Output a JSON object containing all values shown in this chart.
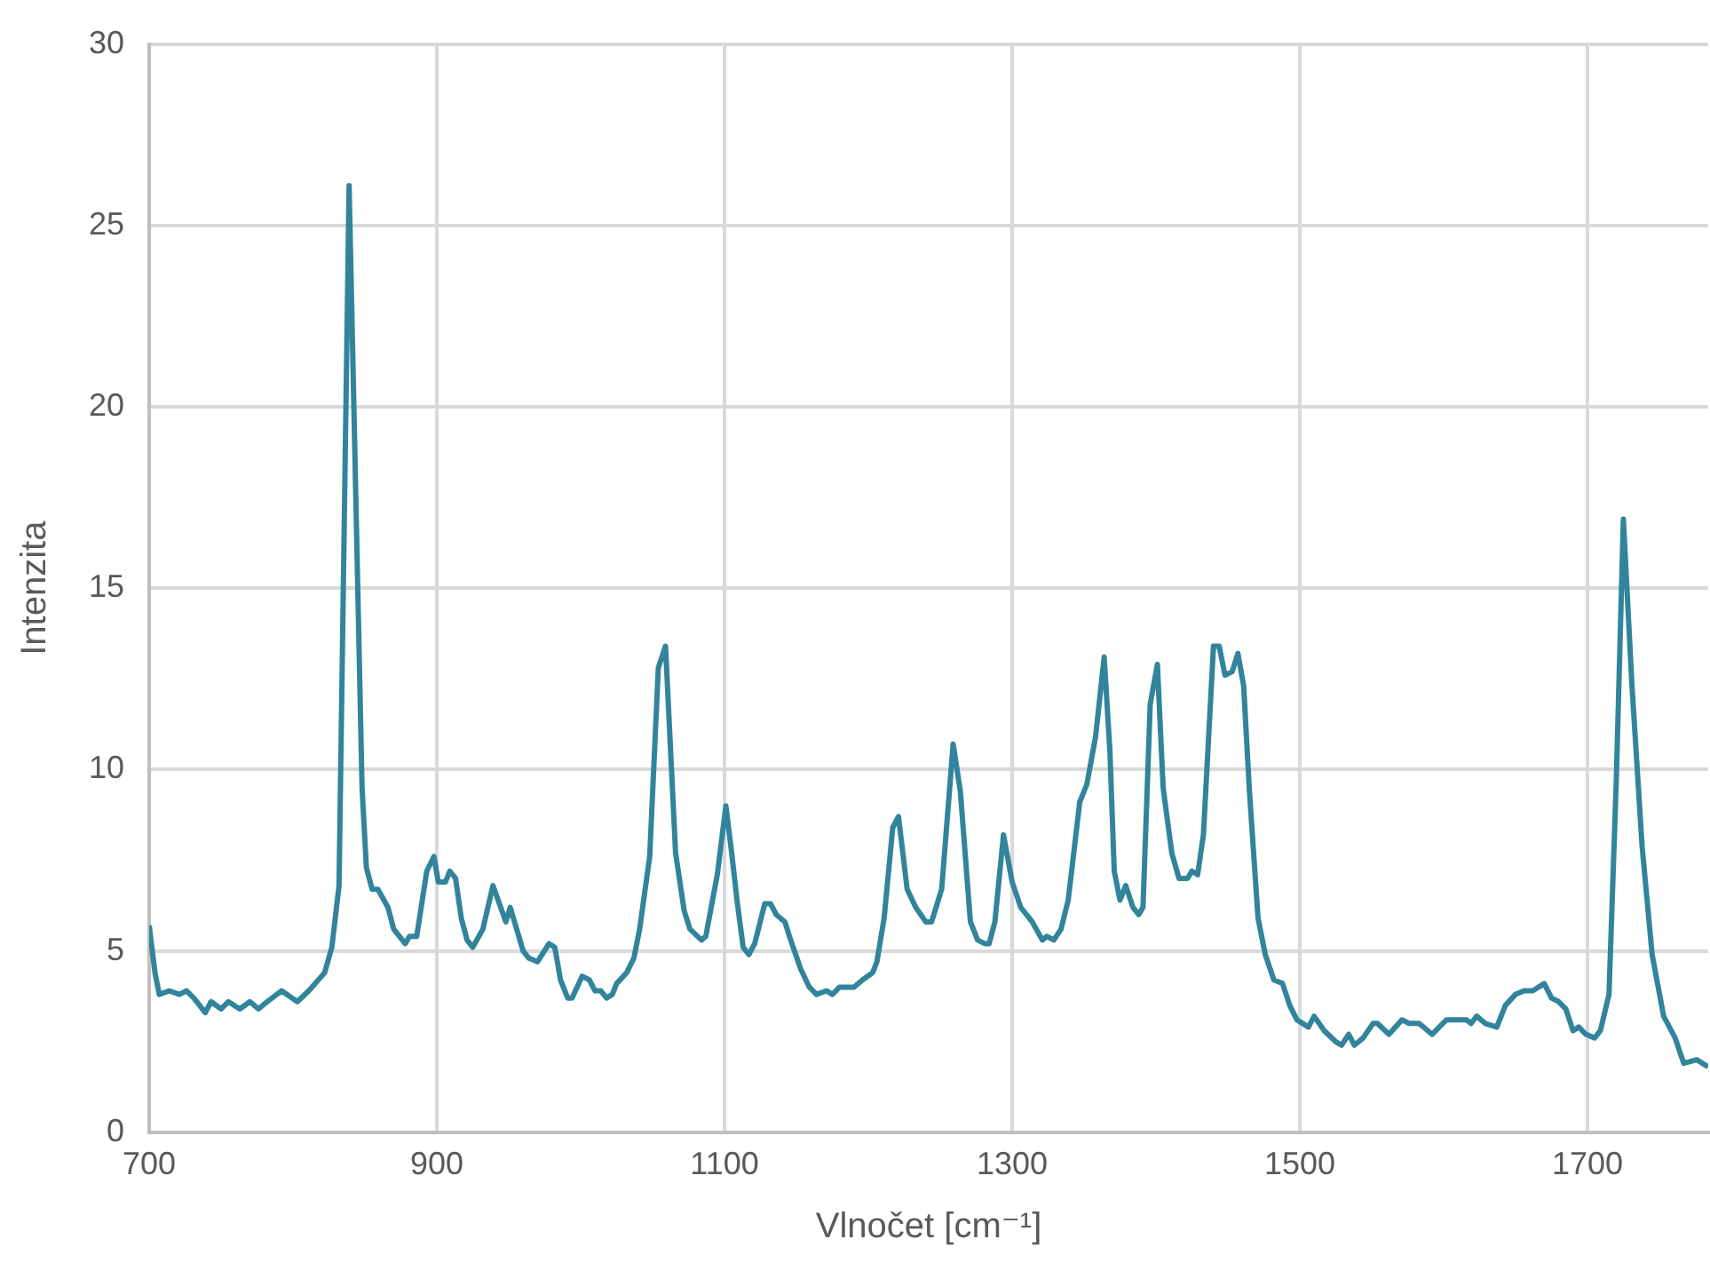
{
  "chart_data": {
    "type": "line",
    "xlabel": "Vlnočet [cm⁻¹]",
    "ylabel": "Intenzita",
    "xlim": [
      700,
      1784
    ],
    "xticks": [
      700,
      900,
      1100,
      1300,
      1500,
      1700
    ],
    "ylim": [
      0,
      30
    ],
    "yticks": [
      0,
      5,
      10,
      15,
      20,
      25,
      30
    ],
    "grid": true,
    "legend": false,
    "marker": "none",
    "line_style": "solid",
    "series": [
      {
        "color": "#31849b",
        "x": [
          700,
          704,
          707,
          714,
          721,
          726,
          731,
          739,
          743,
          750,
          755,
          763,
          770,
          776,
          782,
          792,
          803,
          811,
          822,
          827,
          832,
          839,
          848,
          851,
          855,
          859,
          866,
          870,
          878,
          881,
          886,
          893,
          898,
          901,
          906,
          909,
          913,
          917,
          921,
          925,
          932,
          939,
          948,
          951,
          960,
          964,
          970,
          978,
          982,
          986,
          991,
          994,
          1001,
          1006,
          1010,
          1014,
          1018,
          1022,
          1025,
          1032,
          1037,
          1041,
          1048,
          1054,
          1059,
          1066,
          1072,
          1076,
          1084,
          1087,
          1095,
          1101,
          1105,
          1109,
          1113,
          1117,
          1121,
          1128,
          1132,
          1136,
          1142,
          1146,
          1153,
          1159,
          1164,
          1171,
          1175,
          1180,
          1190,
          1196,
          1203,
          1206,
          1211,
          1217,
          1221,
          1227,
          1233,
          1240,
          1244,
          1251,
          1259,
          1264,
          1271,
          1276,
          1281,
          1284,
          1288,
          1294,
          1300,
          1306,
          1314,
          1321,
          1324,
          1329,
          1334,
          1339,
          1347,
          1352,
          1358,
          1364,
          1368,
          1371,
          1375,
          1379,
          1384,
          1388,
          1391,
          1396,
          1401,
          1405,
          1411,
          1416,
          1422,
          1425,
          1429,
          1433,
          1440,
          1444,
          1448,
          1453,
          1457,
          1461,
          1465,
          1471,
          1476,
          1482,
          1488,
          1493,
          1498,
          1506,
          1510,
          1517,
          1525,
          1529,
          1534,
          1538,
          1544,
          1551,
          1554,
          1562,
          1571,
          1576,
          1583,
          1592,
          1602,
          1613,
          1616,
          1619,
          1623,
          1629,
          1637,
          1643,
          1650,
          1656,
          1662,
          1670,
          1675,
          1680,
          1685,
          1690,
          1694,
          1699,
          1705,
          1709,
          1715,
          1720,
          1725,
          1731,
          1738,
          1745,
          1753,
          1761,
          1767,
          1776,
          1784
        ],
        "values": [
          5.7,
          4.4,
          3.8,
          3.9,
          3.8,
          3.9,
          3.7,
          3.3,
          3.6,
          3.4,
          3.6,
          3.4,
          3.6,
          3.4,
          3.6,
          3.9,
          3.6,
          3.9,
          4.4,
          5.1,
          6.8,
          26.1,
          9.5,
          7.3,
          6.7,
          6.7,
          6.2,
          5.6,
          5.2,
          5.4,
          5.4,
          7.2,
          7.6,
          6.9,
          6.9,
          7.2,
          7.0,
          5.9,
          5.3,
          5.1,
          5.6,
          6.8,
          5.8,
          6.2,
          5.0,
          4.8,
          4.7,
          5.2,
          5.1,
          4.2,
          3.7,
          3.7,
          4.3,
          4.2,
          3.9,
          3.9,
          3.7,
          3.8,
          4.1,
          4.4,
          4.8,
          5.6,
          7.6,
          12.8,
          13.4,
          7.7,
          6.1,
          5.6,
          5.3,
          5.4,
          7.1,
          9.0,
          7.7,
          6.3,
          5.1,
          4.9,
          5.2,
          6.3,
          6.3,
          6.0,
          5.8,
          5.3,
          4.5,
          4.0,
          3.8,
          3.9,
          3.8,
          4.0,
          4.0,
          4.2,
          4.4,
          4.7,
          5.9,
          8.4,
          8.7,
          6.7,
          6.2,
          5.8,
          5.8,
          6.7,
          10.7,
          9.4,
          5.8,
          5.3,
          5.2,
          5.2,
          5.8,
          8.2,
          6.9,
          6.2,
          5.8,
          5.3,
          5.4,
          5.3,
          5.6,
          6.4,
          9.1,
          9.6,
          10.9,
          13.1,
          10.5,
          7.2,
          6.4,
          6.8,
          6.2,
          6.0,
          6.2,
          11.8,
          12.9,
          9.5,
          7.7,
          7.0,
          7.0,
          7.2,
          7.1,
          8.2,
          13.4,
          13.4,
          12.6,
          12.7,
          13.2,
          12.3,
          9.4,
          5.9,
          4.9,
          4.2,
          4.1,
          3.5,
          3.1,
          2.9,
          3.2,
          2.8,
          2.5,
          2.4,
          2.7,
          2.4,
          2.6,
          3.0,
          3.0,
          2.7,
          3.1,
          3.0,
          3.0,
          2.7,
          3.1,
          3.1,
          3.1,
          3.0,
          3.2,
          3.0,
          2.9,
          3.5,
          3.8,
          3.9,
          3.9,
          4.1,
          3.7,
          3.6,
          3.4,
          2.8,
          2.9,
          2.7,
          2.6,
          2.8,
          3.8,
          9.6,
          16.9,
          12.3,
          7.9,
          4.9,
          3.2,
          2.6,
          1.9,
          2.0,
          1.8
        ]
      }
    ]
  }
}
